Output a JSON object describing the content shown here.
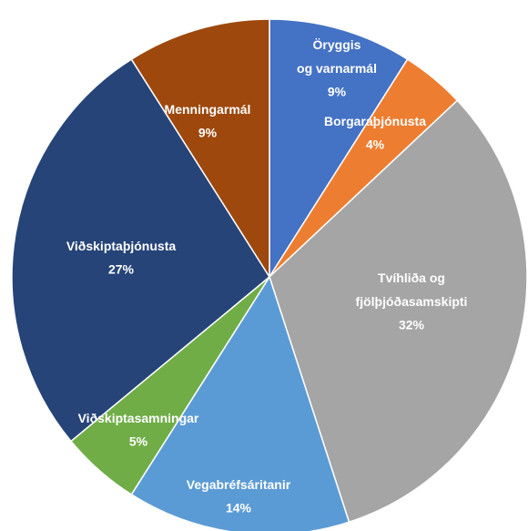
{
  "chart_data": {
    "type": "pie",
    "categories": [
      "Öryggis og varnarmál",
      "Borgaraþjónusta",
      "Tvíhliða og fjölþjóðasamskipti",
      "Vegabréfsáritanir",
      "Viðskiptasamningar",
      "Viðskiptaþjónusta",
      "Menningarmál"
    ],
    "values": [
      9,
      4,
      32,
      14,
      5,
      27,
      9
    ],
    "value_labels": [
      "9%",
      "4%",
      "32%",
      "14%",
      "5%",
      "27%",
      "9%"
    ],
    "colors": [
      "#4472c4",
      "#ed7d31",
      "#a5a5a5",
      "#5b9bd5",
      "#70ad47",
      "#264478",
      "#9e480e"
    ]
  }
}
